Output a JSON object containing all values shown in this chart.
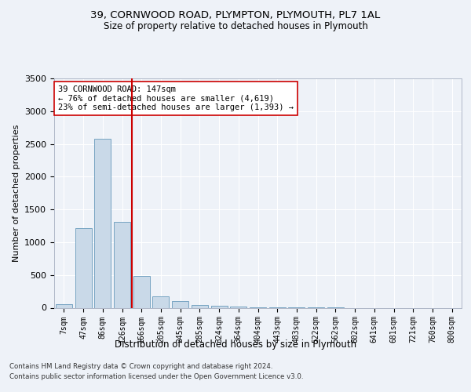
{
  "title_line1": "39, CORNWOOD ROAD, PLYMPTON, PLYMOUTH, PL7 1AL",
  "title_line2": "Size of property relative to detached houses in Plymouth",
  "xlabel": "Distribution of detached houses by size in Plymouth",
  "ylabel": "Number of detached properties",
  "categories": [
    "7sqm",
    "47sqm",
    "86sqm",
    "126sqm",
    "166sqm",
    "205sqm",
    "245sqm",
    "285sqm",
    "324sqm",
    "364sqm",
    "404sqm",
    "443sqm",
    "483sqm",
    "522sqm",
    "562sqm",
    "602sqm",
    "641sqm",
    "681sqm",
    "721sqm",
    "760sqm",
    "800sqm"
  ],
  "values": [
    50,
    1220,
    2580,
    1310,
    490,
    175,
    100,
    45,
    30,
    20,
    10,
    5,
    3,
    2,
    1,
    0,
    0,
    0,
    0,
    0,
    0
  ],
  "bar_color": "#c9d9e8",
  "bar_edge_color": "#6699bb",
  "vline_color": "#cc0000",
  "annotation_text": "39 CORNWOOD ROAD: 147sqm\n← 76% of detached houses are smaller (4,619)\n23% of semi-detached houses are larger (1,393) →",
  "annotation_box_color": "#ffffff",
  "annotation_box_edge": "#cc0000",
  "ylim": [
    0,
    3500
  ],
  "yticks": [
    0,
    500,
    1000,
    1500,
    2000,
    2500,
    3000,
    3500
  ],
  "footer_line1": "Contains HM Land Registry data © Crown copyright and database right 2024.",
  "footer_line2": "Contains public sector information licensed under the Open Government Licence v3.0.",
  "bg_color": "#eef2f8",
  "plot_bg_color": "#eef2f8"
}
